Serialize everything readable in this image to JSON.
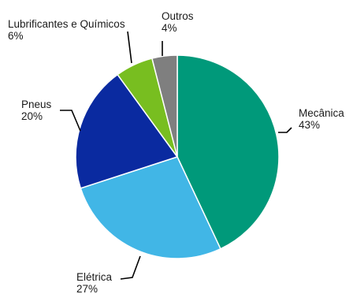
{
  "chart_data": {
    "type": "pie",
    "title": "",
    "start": "12 o'clock",
    "direction": "clockwise",
    "slices": [
      {
        "label": "Mecânica",
        "value": 43,
        "value_label": "43%",
        "color": "#00997a"
      },
      {
        "label": "Elétrica",
        "value": 27,
        "value_label": "27%",
        "color": "#41b6e6"
      },
      {
        "label": "Pneus",
        "value": 20,
        "value_label": "20%",
        "color": "#0a2aa0"
      },
      {
        "label": "Lubrificantes e Químicos",
        "value": 6,
        "value_label": "6%",
        "color": "#78be20"
      },
      {
        "label": "Outros",
        "value": 4,
        "value_label": "4%",
        "color": "#7f7f7f"
      }
    ]
  }
}
